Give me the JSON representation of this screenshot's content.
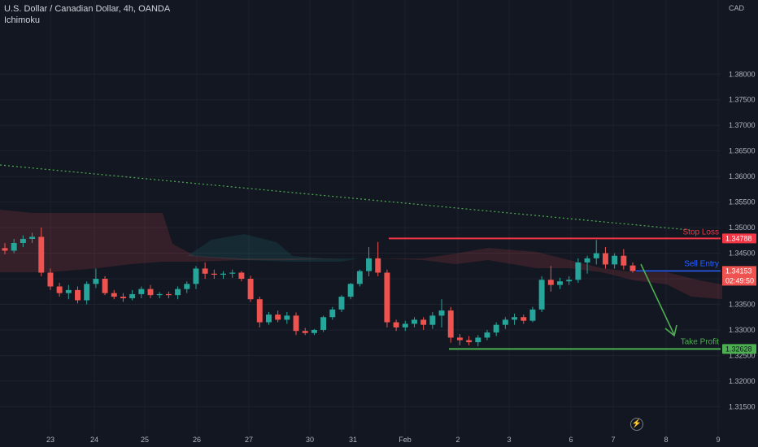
{
  "header": {
    "symbol_line": "U.S. Dollar / Canadian Dollar, 4h, OANDA",
    "indicator": "Ichimoku",
    "currency": "CAD"
  },
  "colors": {
    "background": "#131722",
    "grid": "#1e222d",
    "bull": "#26a69a",
    "bear": "#ef5350",
    "stop_loss": "#f23645",
    "sell_entry": "#2962ff",
    "take_profit": "#4caf50",
    "trend": "#4caf50",
    "text": "#d1d4dc",
    "axis_text": "#b2b5be"
  },
  "annotations": {
    "stop_loss_label": "Stop Loss",
    "stop_loss_price": "1.34788",
    "sell_entry_label": "Sell Entry",
    "sell_entry_price": "1.34153",
    "countdown": "02:49:50",
    "take_profit_label": "Take Profit",
    "take_profit_price": "1.32628"
  },
  "chart_data": {
    "type": "candlestick",
    "ylim": [
      1.3095,
      1.3945
    ],
    "y_ticks": [
      "1.38000",
      "1.37500",
      "1.37000",
      "1.36500",
      "1.36000",
      "1.35500",
      "1.35000",
      "1.34500",
      "1.34000",
      "1.33500",
      "1.33000",
      "1.32500",
      "1.32000",
      "1.31500"
    ],
    "x_ticks": [
      "23",
      "24",
      "25",
      "26",
      "27",
      "30",
      "31",
      "Feb",
      "2",
      "3",
      "6",
      "7",
      "8",
      "9"
    ],
    "levels": {
      "stop_loss": 1.34788,
      "sell_entry": 1.34153,
      "take_profit": 1.32628
    },
    "candles": [
      [
        1.346,
        1.347,
        1.3448,
        1.3455
      ],
      [
        1.3455,
        1.3478,
        1.345,
        1.347
      ],
      [
        1.347,
        1.3485,
        1.3462,
        1.3478
      ],
      [
        1.3478,
        1.349,
        1.347,
        1.3482
      ],
      [
        1.3482,
        1.35,
        1.3405,
        1.3412
      ],
      [
        1.3412,
        1.342,
        1.3378,
        1.3385
      ],
      [
        1.3385,
        1.3392,
        1.3365,
        1.3372
      ],
      [
        1.3372,
        1.3388,
        1.336,
        1.3378
      ],
      [
        1.3378,
        1.3385,
        1.3352,
        1.3358
      ],
      [
        1.3358,
        1.3395,
        1.335,
        1.339
      ],
      [
        1.339,
        1.342,
        1.3382,
        1.34
      ],
      [
        1.34,
        1.3405,
        1.3368,
        1.3372
      ],
      [
        1.3372,
        1.3378,
        1.336,
        1.3365
      ],
      [
        1.3365,
        1.3372,
        1.3355,
        1.3362
      ],
      [
        1.3362,
        1.3378,
        1.3358,
        1.337
      ],
      [
        1.337,
        1.3385,
        1.3362,
        1.338
      ],
      [
        1.338,
        1.3388,
        1.3362,
        1.3368
      ],
      [
        1.3368,
        1.3374,
        1.3362,
        1.337
      ],
      [
        1.337,
        1.3375,
        1.3362,
        1.3368
      ],
      [
        1.3368,
        1.3385,
        1.336,
        1.338
      ],
      [
        1.338,
        1.3395,
        1.3372,
        1.339
      ],
      [
        1.339,
        1.3425,
        1.338,
        1.342
      ],
      [
        1.342,
        1.3432,
        1.34,
        1.341
      ],
      [
        1.341,
        1.3418,
        1.34,
        1.3408
      ],
      [
        1.3408,
        1.3415,
        1.34,
        1.341
      ],
      [
        1.341,
        1.3418,
        1.3402,
        1.3412
      ],
      [
        1.3412,
        1.3415,
        1.3395,
        1.34
      ],
      [
        1.34,
        1.3406,
        1.3355,
        1.336
      ],
      [
        1.336,
        1.3365,
        1.3305,
        1.3315
      ],
      [
        1.3315,
        1.3335,
        1.331,
        1.333
      ],
      [
        1.333,
        1.3338,
        1.3315,
        1.332
      ],
      [
        1.332,
        1.3335,
        1.3312,
        1.3328
      ],
      [
        1.3328,
        1.3334,
        1.329,
        1.3298
      ],
      [
        1.3298,
        1.3304,
        1.329,
        1.3294
      ],
      [
        1.3294,
        1.3302,
        1.329,
        1.33
      ],
      [
        1.33,
        1.3328,
        1.3296,
        1.3325
      ],
      [
        1.3325,
        1.3345,
        1.332,
        1.334
      ],
      [
        1.334,
        1.3368,
        1.3335,
        1.3365
      ],
      [
        1.3365,
        1.3392,
        1.336,
        1.339
      ],
      [
        1.339,
        1.3418,
        1.3385,
        1.3415
      ],
      [
        1.3415,
        1.3462,
        1.3405,
        1.344
      ],
      [
        1.344,
        1.3472,
        1.3405,
        1.3412
      ],
      [
        1.3412,
        1.3418,
        1.3305,
        1.3315
      ],
      [
        1.3315,
        1.332,
        1.3298,
        1.3305
      ],
      [
        1.3305,
        1.3318,
        1.3298,
        1.3312
      ],
      [
        1.3312,
        1.3325,
        1.3305,
        1.332
      ],
      [
        1.332,
        1.3325,
        1.33,
        1.331
      ],
      [
        1.331,
        1.3335,
        1.3302,
        1.3328
      ],
      [
        1.3328,
        1.336,
        1.3305,
        1.3338
      ],
      [
        1.3338,
        1.3345,
        1.3275,
        1.3285
      ],
      [
        1.3285,
        1.3292,
        1.327,
        1.328
      ],
      [
        1.328,
        1.3288,
        1.327,
        1.3276
      ],
      [
        1.3276,
        1.329,
        1.3268,
        1.3285
      ],
      [
        1.3285,
        1.33,
        1.328,
        1.3295
      ],
      [
        1.3295,
        1.3315,
        1.3288,
        1.331
      ],
      [
        1.331,
        1.3325,
        1.3302,
        1.332
      ],
      [
        1.332,
        1.3332,
        1.331,
        1.3325
      ],
      [
        1.3325,
        1.333,
        1.3312,
        1.3318
      ],
      [
        1.3318,
        1.3345,
        1.3315,
        1.334
      ],
      [
        1.334,
        1.3405,
        1.3335,
        1.3398
      ],
      [
        1.3398,
        1.3425,
        1.3375,
        1.3388
      ],
      [
        1.3388,
        1.3402,
        1.338,
        1.3395
      ],
      [
        1.3395,
        1.3405,
        1.3388,
        1.3398
      ],
      [
        1.3398,
        1.344,
        1.3392,
        1.3432
      ],
      [
        1.3432,
        1.3445,
        1.341,
        1.344
      ],
      [
        1.344,
        1.3476,
        1.3428,
        1.345
      ],
      [
        1.345,
        1.3462,
        1.342,
        1.3428
      ],
      [
        1.3428,
        1.345,
        1.342,
        1.3445
      ],
      [
        1.3445,
        1.3458,
        1.3418,
        1.3426
      ],
      [
        1.3426,
        1.3432,
        1.3412,
        1.3415
      ]
    ]
  }
}
